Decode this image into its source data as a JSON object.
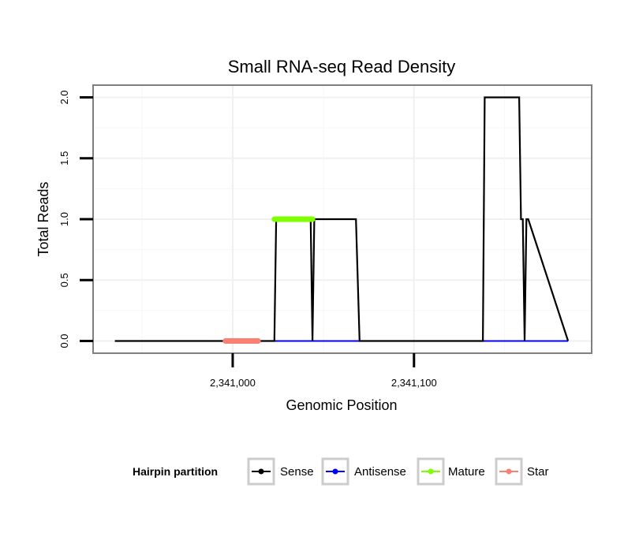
{
  "chart_data": {
    "type": "line",
    "title": "Small RNA-seq Read Density",
    "xlabel": "Genomic Position",
    "ylabel": "Total Reads",
    "xlim": [
      2340923,
      2341198
    ],
    "ylim": [
      -0.1,
      2.1
    ],
    "x_ticks": [
      {
        "value": 2341000,
        "label": "2,341,000"
      },
      {
        "value": 2341100,
        "label": "2,341,100"
      }
    ],
    "y_ticks": [
      {
        "value": 0.0,
        "label": "0.0"
      },
      {
        "value": 0.5,
        "label": "0.5"
      },
      {
        "value": 1.0,
        "label": "1.0"
      },
      {
        "value": 1.5,
        "label": "1.5"
      },
      {
        "value": 2.0,
        "label": "2.0"
      }
    ],
    "legend": {
      "title": "Hairpin partition",
      "placement": "bottom",
      "entries": [
        {
          "name": "Sense",
          "color": "#000000"
        },
        {
          "name": "Antisense",
          "color": "#0000ff"
        },
        {
          "name": "Mature",
          "color": "#7fff00"
        },
        {
          "name": "Star",
          "color": "#fa8072"
        }
      ]
    },
    "series": [
      {
        "name": "Sense",
        "color": "#000000",
        "x": [
          2340935,
          2341023,
          2341024,
          2341043,
          2341044,
          2341045,
          2341068,
          2341070,
          2341138,
          2341139,
          2341158,
          2341159,
          2341160,
          2341161,
          2341162,
          2341163,
          2341185
        ],
        "y": [
          0,
          0,
          1,
          1,
          0,
          1,
          1,
          0,
          0,
          2,
          2,
          1,
          1,
          0,
          1,
          1,
          0
        ]
      },
      {
        "name": "Antisense",
        "color": "#0000ff",
        "x": [
          2341023,
          2341185
        ],
        "y": [
          0,
          0
        ]
      },
      {
        "name": "Mature",
        "color": "#7fff00",
        "x": [
          2341023,
          2341044
        ],
        "y": [
          1,
          1
        ]
      },
      {
        "name": "Star",
        "color": "#fa8072",
        "x": [
          2340996,
          2341014
        ],
        "y": [
          0,
          0
        ]
      }
    ]
  }
}
